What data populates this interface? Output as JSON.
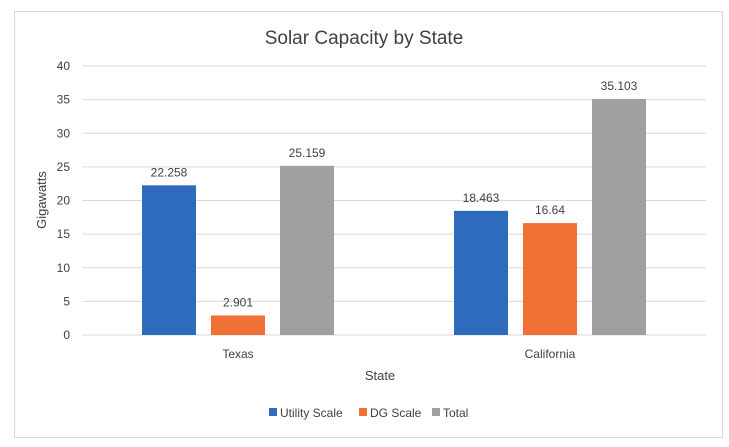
{
  "chart_data": {
    "type": "bar",
    "title": "Solar Capacity by State",
    "xlabel": "State",
    "ylabel": "Gigawatts",
    "categories": [
      "Texas",
      "California"
    ],
    "series": [
      {
        "name": "Utility Scale",
        "color": "#2e6bbd",
        "values": [
          22.258,
          18.463
        ]
      },
      {
        "name": "DG Scale",
        "color": "#f07035",
        "values": [
          2.901,
          16.64
        ]
      },
      {
        "name": "Total",
        "color": "#a0a0a0",
        "values": [
          25.159,
          35.103
        ]
      }
    ],
    "ylim": [
      0,
      40
    ],
    "yticks": [
      "0",
      "5",
      "10",
      "15",
      "20",
      "25",
      "30",
      "35",
      "40"
    ],
    "grid": true,
    "legend": "bottom"
  }
}
